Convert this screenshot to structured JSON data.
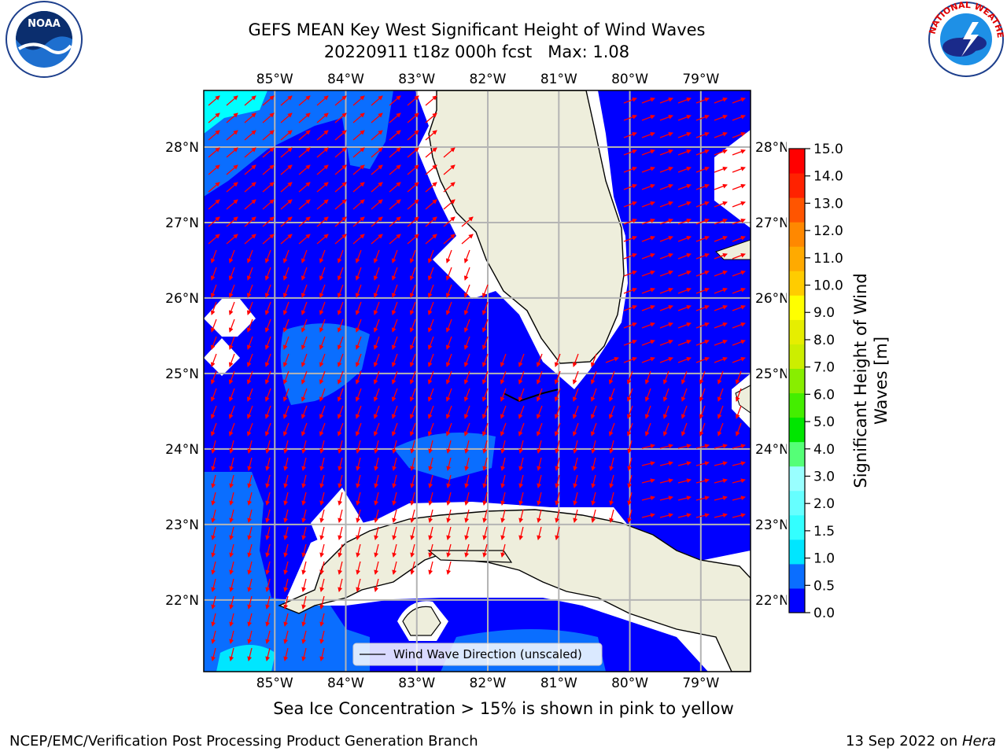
{
  "title_line1": "GEFS MEAN Key West Significant Height of Wind Waves",
  "title_line2": "20220911 t18z 000h fcst   Max: 1.08",
  "note": "Sea Ice Concentration > 15% is shown in pink to yellow",
  "footer_left": "NCEP/EMC/Verification Post Processing Product Generation Branch",
  "footer_right_date": "13 Sep 2022 on ",
  "footer_right_host": "Hera",
  "legend_label": "Wind Wave Direction (unscaled)",
  "logos": {
    "noaa_text": "NOAA",
    "nws_text": "NATIONAL WEATHER SERVICE"
  },
  "map": {
    "lon_labels": [
      "85°W",
      "84°W",
      "83°W",
      "82°W",
      "81°W",
      "80°W",
      "79°W"
    ],
    "lat_labels": [
      "28°N",
      "27°N",
      "26°N",
      "25°N",
      "24°N",
      "23°N",
      "22°N"
    ],
    "lon_range": [
      -86.0,
      -78.3
    ],
    "lat_range": [
      21.05,
      28.75
    ],
    "max_value": 1.08,
    "colors": {
      "ocean_low": "#0000ff",
      "ocean_mid": "#0a6eff",
      "land": "#eeeedc",
      "arrow": "#ff0000",
      "grid": "#b4b4b4"
    }
  },
  "colorbar": {
    "label": "Significant Height of Wind\nWaves [m]",
    "ticks": [
      "0.0",
      "0.5",
      "1.0",
      "1.5",
      "2.0",
      "3.0",
      "4.0",
      "5.0",
      "6.0",
      "7.0",
      "8.0",
      "9.0",
      "10.0",
      "11.0",
      "12.0",
      "13.0",
      "14.0",
      "15.0"
    ],
    "colors": [
      "#0000ff",
      "#0a6eff",
      "#00e6ff",
      "#33ffff",
      "#66ffff",
      "#99ffff",
      "#55ff77",
      "#00e600",
      "#44ee00",
      "#88ee00",
      "#ccee00",
      "#e6ee00",
      "#ffff00",
      "#ffcc00",
      "#ffaa00",
      "#ff8800",
      "#ff5500",
      "#ff2200",
      "#ff0000"
    ]
  }
}
